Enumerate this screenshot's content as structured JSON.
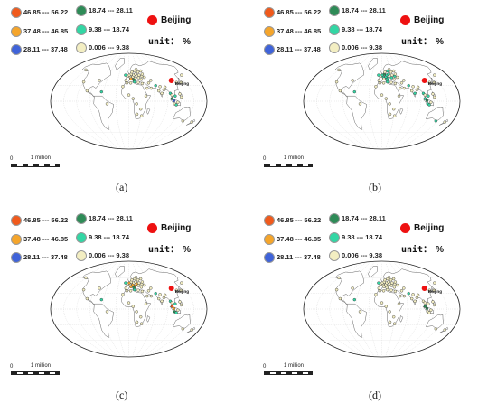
{
  "legend": {
    "classes": [
      {
        "label": "46.85 --- 56.22",
        "color": "#f05a1c"
      },
      {
        "label": "37.48 --- 46.85",
        "color": "#f5a52b"
      },
      {
        "label": "28.11 --- 37.48",
        "color": "#3f63d9"
      },
      {
        "label": "18.74 --- 28.11",
        "color": "#2e8b57"
      },
      {
        "label": "9.38 --- 18.74",
        "color": "#33d6a4"
      },
      {
        "label": "0.006 --- 9.38",
        "color": "#f3eec2"
      }
    ],
    "beijing_label": "Beijing",
    "beijing_color": "#ee1111",
    "unit_label": "unit：",
    "unit_symbol": "%"
  },
  "scale_bar": {
    "zero": "0",
    "text": "1 million"
  },
  "maps": [
    {
      "caption": "(a)",
      "beijing_map_label": "Beijing",
      "stations": [
        [
          -3,
          48,
          "beige"
        ],
        [
          2,
          50,
          "beige"
        ],
        [
          5,
          46,
          "beige"
        ],
        [
          8,
          52,
          "beige"
        ],
        [
          12,
          47,
          "beige"
        ],
        [
          15,
          50,
          "beige"
        ],
        [
          18,
          44,
          "beige"
        ],
        [
          21,
          52,
          "beige"
        ],
        [
          24,
          48,
          "beige"
        ],
        [
          28,
          45,
          "beige"
        ],
        [
          31,
          50,
          "beige"
        ],
        [
          35,
          42,
          "beige"
        ],
        [
          38,
          48,
          "beige"
        ],
        [
          42,
          52,
          "beige"
        ],
        [
          45,
          46,
          "beige"
        ],
        [
          10,
          56,
          "beige"
        ],
        [
          20,
          58,
          "beige"
        ],
        [
          30,
          56,
          "beige"
        ],
        [
          40,
          58,
          "beige"
        ],
        [
          26,
          61,
          "beige"
        ],
        [
          14,
          41,
          "green"
        ],
        [
          6,
          43,
          "orange"
        ],
        [
          -8,
          40,
          "beige"
        ],
        [
          -5,
          35,
          "beige"
        ],
        [
          5,
          35,
          "beige"
        ],
        [
          15,
          37,
          "teal"
        ],
        [
          25,
          36,
          "beige"
        ],
        [
          35,
          34,
          "beige"
        ],
        [
          -10,
          50,
          "teal"
        ],
        [
          -15,
          28,
          "beige"
        ],
        [
          0,
          12,
          "beige"
        ],
        [
          10,
          5,
          "beige"
        ],
        [
          18,
          -5,
          "beige"
        ],
        [
          28,
          -15,
          "beige"
        ],
        [
          20,
          -25,
          "beige"
        ],
        [
          32,
          -28,
          "beige"
        ],
        [
          40,
          10,
          "beige"
        ],
        [
          45,
          25,
          "beige"
        ],
        [
          55,
          25,
          "beige"
        ],
        [
          52,
          35,
          "beige"
        ],
        [
          60,
          40,
          "beige"
        ],
        [
          68,
          30,
          "teal"
        ],
        [
          72,
          20,
          "beige"
        ],
        [
          78,
          28,
          "beige"
        ],
        [
          78,
          15,
          "beige"
        ],
        [
          85,
          22,
          "beige"
        ],
        [
          90,
          27,
          "beige"
        ],
        [
          98,
          15,
          "teal"
        ],
        [
          100,
          5,
          "green"
        ],
        [
          104,
          1,
          "blue"
        ],
        [
          106,
          -5,
          "beige"
        ],
        [
          110,
          -7,
          "teal"
        ],
        [
          113,
          -2,
          "beige"
        ],
        [
          101,
          12,
          "beige"
        ],
        [
          108,
          10,
          "teal"
        ],
        [
          120,
          14,
          "beige"
        ],
        [
          122,
          8,
          "beige"
        ],
        [
          126,
          36,
          "beige"
        ],
        [
          138,
          36,
          "beige"
        ],
        [
          145,
          -38,
          "beige"
        ],
        [
          172,
          -40,
          "beige"
        ],
        [
          160,
          50,
          "beige"
        ],
        [
          -65,
          18,
          "teal"
        ],
        [
          -50,
          -5,
          "beige"
        ],
        [
          -100,
          20,
          "beige"
        ],
        [
          -120,
          37,
          "beige"
        ],
        [
          -80,
          40,
          "beige"
        ],
        [
          -150,
          60,
          "beige"
        ]
      ]
    },
    {
      "caption": "(b)",
      "beijing_map_label": "Beijing",
      "stations": [
        [
          -3,
          48,
          "beige"
        ],
        [
          2,
          50,
          "teal"
        ],
        [
          5,
          46,
          "teal"
        ],
        [
          8,
          52,
          "green"
        ],
        [
          12,
          47,
          "teal"
        ],
        [
          15,
          50,
          "teal"
        ],
        [
          18,
          44,
          "teal"
        ],
        [
          21,
          52,
          "teal"
        ],
        [
          24,
          48,
          "beige"
        ],
        [
          28,
          45,
          "teal"
        ],
        [
          31,
          50,
          "beige"
        ],
        [
          35,
          42,
          "beige"
        ],
        [
          38,
          48,
          "teal"
        ],
        [
          42,
          52,
          "beige"
        ],
        [
          45,
          46,
          "beige"
        ],
        [
          10,
          56,
          "beige"
        ],
        [
          20,
          58,
          "teal"
        ],
        [
          30,
          56,
          "beige"
        ],
        [
          40,
          58,
          "beige"
        ],
        [
          26,
          61,
          "beige"
        ],
        [
          14,
          41,
          "teal"
        ],
        [
          6,
          43,
          "beige"
        ],
        [
          -8,
          40,
          "beige"
        ],
        [
          -5,
          35,
          "beige"
        ],
        [
          5,
          35,
          "beige"
        ],
        [
          15,
          37,
          "teal"
        ],
        [
          25,
          36,
          "beige"
        ],
        [
          35,
          34,
          "beige"
        ],
        [
          -10,
          50,
          "teal"
        ],
        [
          -15,
          28,
          "beige"
        ],
        [
          0,
          12,
          "beige"
        ],
        [
          10,
          5,
          "beige"
        ],
        [
          18,
          -5,
          "beige"
        ],
        [
          28,
          -15,
          "beige"
        ],
        [
          20,
          -25,
          "beige"
        ],
        [
          32,
          -28,
          "beige"
        ],
        [
          40,
          10,
          "beige"
        ],
        [
          45,
          25,
          "beige"
        ],
        [
          55,
          25,
          "beige"
        ],
        [
          52,
          35,
          "beige"
        ],
        [
          60,
          40,
          "beige"
        ],
        [
          68,
          30,
          "teal"
        ],
        [
          72,
          20,
          "beige"
        ],
        [
          78,
          28,
          "beige"
        ],
        [
          78,
          15,
          "teal"
        ],
        [
          85,
          22,
          "beige"
        ],
        [
          90,
          27,
          "beige"
        ],
        [
          98,
          15,
          "teal"
        ],
        [
          100,
          5,
          "teal"
        ],
        [
          104,
          1,
          "green"
        ],
        [
          106,
          -5,
          "teal"
        ],
        [
          110,
          -7,
          "teal"
        ],
        [
          113,
          -2,
          "beige"
        ],
        [
          101,
          12,
          "beige"
        ],
        [
          108,
          10,
          "teal"
        ],
        [
          120,
          14,
          "beige"
        ],
        [
          122,
          8,
          "beige"
        ],
        [
          126,
          36,
          "beige"
        ],
        [
          138,
          36,
          "beige"
        ],
        [
          145,
          -38,
          "teal"
        ],
        [
          172,
          -40,
          "beige"
        ],
        [
          160,
          50,
          "beige"
        ],
        [
          -65,
          18,
          "teal"
        ],
        [
          -50,
          -5,
          "beige"
        ],
        [
          -100,
          20,
          "beige"
        ],
        [
          -120,
          37,
          "beige"
        ],
        [
          -80,
          40,
          "beige"
        ],
        [
          -150,
          60,
          "beige"
        ]
      ]
    },
    {
      "caption": "(c)",
      "beijing_map_label": "Beijing",
      "stations": [
        [
          -3,
          48,
          "beige"
        ],
        [
          2,
          50,
          "orange"
        ],
        [
          5,
          46,
          "beige"
        ],
        [
          8,
          52,
          "beige"
        ],
        [
          12,
          47,
          "orange"
        ],
        [
          15,
          50,
          "beige"
        ],
        [
          18,
          44,
          "orange"
        ],
        [
          21,
          52,
          "beige"
        ],
        [
          24,
          48,
          "orange"
        ],
        [
          28,
          45,
          "beige"
        ],
        [
          31,
          50,
          "beige"
        ],
        [
          35,
          42,
          "beige"
        ],
        [
          38,
          48,
          "beige"
        ],
        [
          42,
          52,
          "beige"
        ],
        [
          45,
          46,
          "beige"
        ],
        [
          10,
          56,
          "beige"
        ],
        [
          20,
          58,
          "beige"
        ],
        [
          30,
          56,
          "beige"
        ],
        [
          40,
          58,
          "beige"
        ],
        [
          26,
          61,
          "beige"
        ],
        [
          14,
          41,
          "green"
        ],
        [
          6,
          43,
          "orange"
        ],
        [
          -8,
          40,
          "beige"
        ],
        [
          -5,
          35,
          "beige"
        ],
        [
          5,
          35,
          "beige"
        ],
        [
          15,
          37,
          "teal"
        ],
        [
          25,
          36,
          "beige"
        ],
        [
          35,
          34,
          "beige"
        ],
        [
          -10,
          50,
          "teal"
        ],
        [
          -15,
          28,
          "beige"
        ],
        [
          0,
          12,
          "beige"
        ],
        [
          10,
          5,
          "beige"
        ],
        [
          18,
          -5,
          "beige"
        ],
        [
          28,
          -15,
          "beige"
        ],
        [
          20,
          -25,
          "beige"
        ],
        [
          32,
          -28,
          "beige"
        ],
        [
          40,
          10,
          "beige"
        ],
        [
          45,
          25,
          "beige"
        ],
        [
          55,
          25,
          "beige"
        ],
        [
          52,
          35,
          "beige"
        ],
        [
          60,
          40,
          "beige"
        ],
        [
          68,
          30,
          "teal"
        ],
        [
          72,
          20,
          "beige"
        ],
        [
          78,
          28,
          "beige"
        ],
        [
          78,
          15,
          "beige"
        ],
        [
          85,
          22,
          "beige"
        ],
        [
          90,
          27,
          "beige"
        ],
        [
          98,
          15,
          "teal"
        ],
        [
          100,
          5,
          "red"
        ],
        [
          104,
          1,
          "orange"
        ],
        [
          106,
          -5,
          "green"
        ],
        [
          110,
          -7,
          "teal"
        ],
        [
          113,
          -2,
          "beige"
        ],
        [
          101,
          12,
          "beige"
        ],
        [
          108,
          10,
          "teal"
        ],
        [
          120,
          14,
          "beige"
        ],
        [
          122,
          8,
          "beige"
        ],
        [
          126,
          36,
          "beige"
        ],
        [
          138,
          36,
          "beige"
        ],
        [
          145,
          -38,
          "beige"
        ],
        [
          172,
          -40,
          "beige"
        ],
        [
          160,
          50,
          "beige"
        ],
        [
          -65,
          18,
          "teal"
        ],
        [
          -50,
          -5,
          "beige"
        ],
        [
          -100,
          20,
          "beige"
        ],
        [
          -120,
          37,
          "beige"
        ],
        [
          -80,
          40,
          "beige"
        ],
        [
          -150,
          60,
          "beige"
        ]
      ]
    },
    {
      "caption": "(d)",
      "beijing_map_label": "Beijing",
      "stations": [
        [
          -3,
          48,
          "beige"
        ],
        [
          2,
          50,
          "beige"
        ],
        [
          5,
          46,
          "beige"
        ],
        [
          8,
          52,
          "beige"
        ],
        [
          12,
          47,
          "beige"
        ],
        [
          15,
          50,
          "beige"
        ],
        [
          18,
          44,
          "beige"
        ],
        [
          21,
          52,
          "beige"
        ],
        [
          24,
          48,
          "beige"
        ],
        [
          28,
          45,
          "beige"
        ],
        [
          31,
          50,
          "beige"
        ],
        [
          35,
          42,
          "beige"
        ],
        [
          38,
          48,
          "beige"
        ],
        [
          42,
          52,
          "beige"
        ],
        [
          45,
          46,
          "beige"
        ],
        [
          10,
          56,
          "beige"
        ],
        [
          20,
          58,
          "beige"
        ],
        [
          30,
          56,
          "beige"
        ],
        [
          40,
          58,
          "beige"
        ],
        [
          26,
          61,
          "beige"
        ],
        [
          14,
          41,
          "beige"
        ],
        [
          6,
          43,
          "beige"
        ],
        [
          -8,
          40,
          "beige"
        ],
        [
          -5,
          35,
          "beige"
        ],
        [
          5,
          35,
          "beige"
        ],
        [
          15,
          37,
          "beige"
        ],
        [
          25,
          36,
          "beige"
        ],
        [
          35,
          34,
          "beige"
        ],
        [
          -10,
          50,
          "teal"
        ],
        [
          -15,
          28,
          "beige"
        ],
        [
          0,
          12,
          "beige"
        ],
        [
          10,
          5,
          "beige"
        ],
        [
          18,
          -5,
          "beige"
        ],
        [
          28,
          -15,
          "beige"
        ],
        [
          20,
          -25,
          "beige"
        ],
        [
          32,
          -28,
          "beige"
        ],
        [
          40,
          10,
          "beige"
        ],
        [
          45,
          25,
          "beige"
        ],
        [
          55,
          25,
          "beige"
        ],
        [
          52,
          35,
          "beige"
        ],
        [
          60,
          40,
          "beige"
        ],
        [
          68,
          30,
          "teal"
        ],
        [
          72,
          20,
          "beige"
        ],
        [
          78,
          28,
          "beige"
        ],
        [
          78,
          15,
          "beige"
        ],
        [
          85,
          22,
          "beige"
        ],
        [
          90,
          27,
          "beige"
        ],
        [
          98,
          15,
          "beige"
        ],
        [
          100,
          5,
          "green"
        ],
        [
          104,
          1,
          "green"
        ],
        [
          106,
          -5,
          "beige"
        ],
        [
          110,
          -7,
          "beige"
        ],
        [
          113,
          -2,
          "beige"
        ],
        [
          101,
          12,
          "beige"
        ],
        [
          108,
          10,
          "beige"
        ],
        [
          120,
          14,
          "beige"
        ],
        [
          122,
          8,
          "beige"
        ],
        [
          126,
          36,
          "beige"
        ],
        [
          138,
          36,
          "beige"
        ],
        [
          145,
          -38,
          "beige"
        ],
        [
          172,
          -40,
          "beige"
        ],
        [
          160,
          50,
          "beige"
        ],
        [
          -65,
          18,
          "teal"
        ],
        [
          -50,
          -5,
          "beige"
        ],
        [
          -100,
          20,
          "beige"
        ],
        [
          -120,
          37,
          "beige"
        ],
        [
          -80,
          40,
          "beige"
        ],
        [
          -150,
          60,
          "beige"
        ]
      ]
    }
  ],
  "beijing_location": [
    116.4,
    39.9
  ],
  "station_colors": {
    "red": "#f05a1c",
    "orange": "#f5a52b",
    "blue": "#3f63d9",
    "green": "#2e8b57",
    "teal": "#33d6a4",
    "beige": "#f3eec2"
  }
}
